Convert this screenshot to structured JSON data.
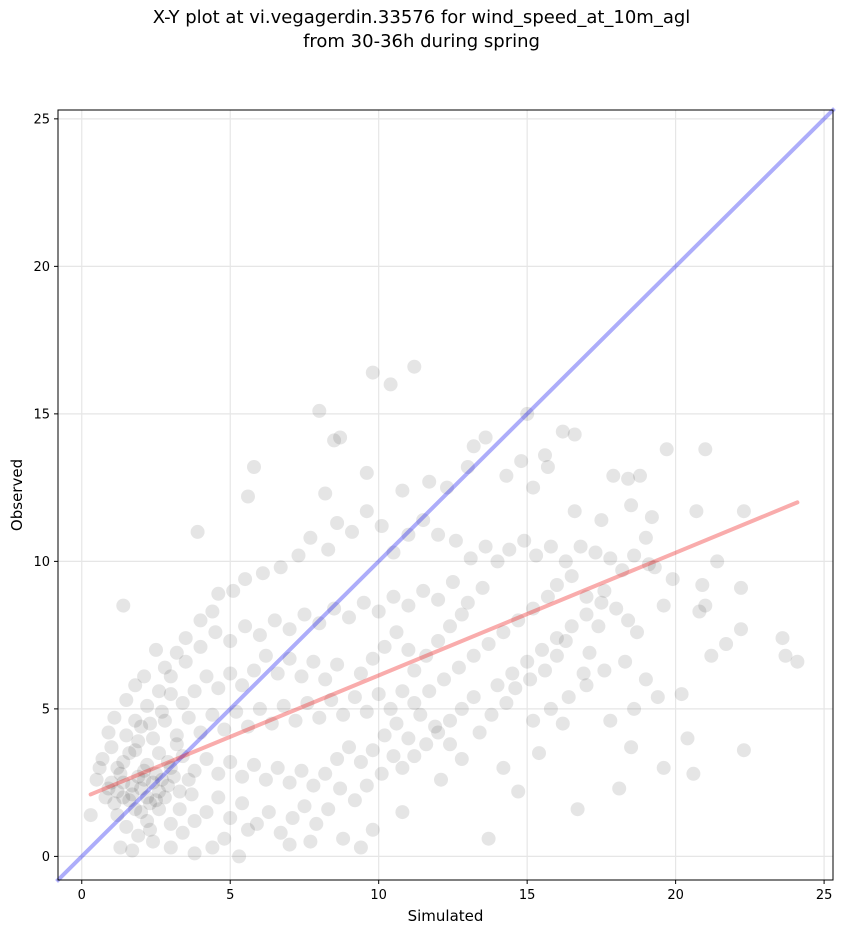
{
  "chart_data": {
    "type": "scatter",
    "title": [
      "X-Y plot at vi.vegagerdin.33576 for wind_speed_at_10m_agl",
      "from 30-36h during spring"
    ],
    "xlabel": "Simulated",
    "ylabel": "Observed",
    "xlim": [
      -0.8,
      25.3
    ],
    "ylim": [
      -0.8,
      25.3
    ],
    "xticks": [
      0,
      5,
      10,
      15,
      20,
      25
    ],
    "yticks": [
      0,
      5,
      10,
      15,
      20,
      25
    ],
    "grid": true,
    "colors": {
      "points": "#000000",
      "identity_line": "#0000ee",
      "regression_line": "#ee1111"
    },
    "reference_lines": {
      "identity": {
        "x": [
          -0.8,
          25.3
        ],
        "y": [
          -0.8,
          25.3
        ]
      },
      "regression": {
        "x": [
          0.3,
          24.1
        ],
        "y": [
          2.1,
          12.0
        ]
      }
    },
    "points": [
      [
        1.4,
        8.5
      ],
      [
        3.9,
        11.0
      ],
      [
        5.8,
        13.2
      ],
      [
        5.6,
        12.2
      ],
      [
        8.0,
        15.1
      ],
      [
        8.2,
        12.3
      ],
      [
        8.5,
        14.1
      ],
      [
        8.7,
        14.2
      ],
      [
        9.8,
        16.4
      ],
      [
        10.4,
        16.0
      ],
      [
        11.2,
        16.6
      ],
      [
        9.6,
        13.0
      ],
      [
        10.8,
        12.4
      ],
      [
        11.7,
        12.7
      ],
      [
        12.3,
        12.5
      ],
      [
        13.0,
        13.2
      ],
      [
        13.2,
        13.9
      ],
      [
        13.6,
        14.2
      ],
      [
        14.3,
        12.9
      ],
      [
        15.0,
        15.0
      ],
      [
        16.2,
        14.4
      ],
      [
        16.6,
        14.3
      ],
      [
        15.6,
        13.6
      ],
      [
        15.7,
        13.2
      ],
      [
        14.8,
        13.4
      ],
      [
        15.2,
        12.5
      ],
      [
        16.6,
        11.7
      ],
      [
        17.5,
        11.4
      ],
      [
        17.9,
        12.9
      ],
      [
        18.4,
        12.8
      ],
      [
        18.8,
        12.9
      ],
      [
        19.7,
        13.8
      ],
      [
        21.0,
        13.8
      ],
      [
        20.7,
        11.7
      ],
      [
        22.3,
        11.7
      ],
      [
        18.5,
        11.9
      ],
      [
        19.2,
        11.5
      ],
      [
        19.0,
        10.8
      ],
      [
        19.1,
        9.9
      ],
      [
        21.4,
        10.0
      ],
      [
        20.9,
        9.2
      ],
      [
        21.0,
        8.5
      ],
      [
        20.8,
        8.3
      ],
      [
        19.6,
        8.5
      ],
      [
        19.9,
        9.4
      ],
      [
        22.2,
        9.1
      ],
      [
        21.2,
        6.8
      ],
      [
        21.7,
        7.2
      ],
      [
        22.2,
        7.7
      ],
      [
        23.6,
        7.4
      ],
      [
        23.7,
        6.8
      ],
      [
        24.1,
        6.6
      ],
      [
        20.2,
        5.5
      ],
      [
        20.4,
        4.0
      ],
      [
        20.6,
        2.8
      ],
      [
        19.6,
        3.0
      ],
      [
        22.3,
        3.6
      ],
      [
        18.5,
        3.7
      ],
      [
        18.1,
        2.3
      ],
      [
        16.7,
        1.6
      ],
      [
        14.7,
        2.2
      ],
      [
        14.2,
        3.0
      ],
      [
        15.4,
        3.5
      ],
      [
        13.7,
        0.6
      ],
      [
        12.1,
        2.6
      ],
      [
        10.8,
        1.5
      ],
      [
        9.8,
        0.9
      ],
      [
        9.4,
        0.3
      ],
      [
        8.8,
        0.6
      ],
      [
        7.7,
        0.5
      ],
      [
        7.0,
        0.4
      ],
      [
        5.6,
        0.9
      ],
      [
        5.3,
        0.0
      ],
      [
        4.8,
        0.6
      ],
      [
        4.4,
        0.3
      ],
      [
        3.8,
        0.1
      ],
      [
        3.0,
        0.3
      ],
      [
        2.4,
        0.5
      ],
      [
        1.7,
        0.2
      ],
      [
        1.3,
        0.3
      ],
      [
        1.2,
        1.4
      ],
      [
        0.3,
        1.4
      ],
      [
        0.5,
        2.6
      ],
      [
        0.6,
        3.0
      ],
      [
        0.9,
        4.2
      ],
      [
        1.1,
        4.7
      ],
      [
        1.5,
        5.3
      ],
      [
        1.8,
        5.8
      ],
      [
        2.1,
        6.1
      ],
      [
        2.5,
        7.0
      ],
      [
        2.8,
        6.4
      ],
      [
        3.2,
        6.9
      ],
      [
        3.5,
        7.4
      ],
      [
        4.0,
        8.0
      ],
      [
        4.4,
        8.3
      ],
      [
        4.6,
        8.9
      ],
      [
        5.1,
        9.0
      ],
      [
        5.5,
        9.4
      ],
      [
        6.1,
        9.6
      ],
      [
        6.7,
        9.8
      ],
      [
        7.3,
        10.2
      ],
      [
        7.7,
        10.8
      ],
      [
        8.3,
        10.4
      ],
      [
        8.6,
        11.3
      ],
      [
        9.1,
        11.0
      ],
      [
        9.6,
        11.7
      ],
      [
        10.1,
        11.2
      ],
      [
        10.5,
        10.3
      ],
      [
        11.0,
        10.9
      ],
      [
        11.5,
        11.4
      ],
      [
        12.0,
        10.9
      ],
      [
        12.6,
        10.7
      ],
      [
        13.1,
        10.1
      ],
      [
        13.6,
        10.5
      ],
      [
        14.0,
        10.0
      ],
      [
        14.4,
        10.4
      ],
      [
        14.9,
        10.7
      ],
      [
        15.3,
        10.2
      ],
      [
        15.8,
        10.5
      ],
      [
        16.3,
        10.0
      ],
      [
        16.8,
        10.5
      ],
      [
        17.3,
        10.3
      ],
      [
        17.8,
        10.1
      ],
      [
        18.2,
        9.7
      ],
      [
        18.6,
        10.2
      ],
      [
        19.3,
        9.8
      ],
      [
        16.0,
        9.2
      ],
      [
        16.5,
        9.5
      ],
      [
        17.0,
        8.8
      ],
      [
        17.6,
        9.0
      ],
      [
        18.0,
        8.4
      ],
      [
        18.4,
        8.0
      ],
      [
        18.7,
        7.6
      ],
      [
        17.4,
        7.8
      ],
      [
        17.1,
        6.9
      ],
      [
        16.3,
        7.3
      ],
      [
        16.0,
        6.8
      ],
      [
        15.6,
        6.3
      ],
      [
        15.1,
        6.0
      ],
      [
        14.6,
        5.7
      ],
      [
        14.3,
        5.2
      ],
      [
        13.8,
        4.8
      ],
      [
        13.4,
        4.2
      ],
      [
        12.8,
        3.3
      ],
      [
        12.4,
        3.8
      ],
      [
        11.9,
        4.4
      ],
      [
        11.4,
        4.8
      ],
      [
        11.0,
        4.0
      ],
      [
        10.5,
        3.4
      ],
      [
        10.1,
        2.8
      ],
      [
        9.6,
        2.4
      ],
      [
        9.2,
        1.9
      ],
      [
        8.7,
        2.3
      ],
      [
        8.3,
        1.6
      ],
      [
        7.9,
        1.1
      ],
      [
        7.5,
        1.7
      ],
      [
        7.1,
        1.3
      ],
      [
        6.7,
        0.8
      ],
      [
        6.3,
        1.5
      ],
      [
        5.9,
        1.1
      ],
      [
        5.4,
        1.8
      ],
      [
        5.0,
        1.3
      ],
      [
        4.6,
        2.0
      ],
      [
        4.2,
        1.5
      ],
      [
        3.7,
        2.1
      ],
      [
        3.3,
        1.6
      ],
      [
        2.9,
        2.4
      ],
      [
        2.5,
        1.9
      ],
      [
        2.1,
        2.6
      ],
      [
        1.7,
        2.1
      ],
      [
        1.3,
        2.8
      ],
      [
        0.9,
        2.3
      ],
      [
        0.7,
        3.3
      ],
      [
        1.0,
        3.7
      ],
      [
        1.4,
        3.2
      ],
      [
        1.8,
        3.6
      ],
      [
        2.2,
        3.1
      ],
      [
        2.6,
        3.5
      ],
      [
        3.0,
        3.0
      ],
      [
        3.4,
        3.4
      ],
      [
        3.8,
        2.9
      ],
      [
        4.2,
        3.3
      ],
      [
        4.6,
        2.8
      ],
      [
        5.0,
        3.2
      ],
      [
        5.4,
        2.7
      ],
      [
        5.8,
        3.1
      ],
      [
        6.2,
        2.6
      ],
      [
        6.6,
        3.0
      ],
      [
        7.0,
        2.5
      ],
      [
        7.4,
        2.9
      ],
      [
        7.8,
        2.4
      ],
      [
        8.2,
        2.8
      ],
      [
        8.6,
        3.3
      ],
      [
        9.0,
        3.7
      ],
      [
        9.4,
        3.2
      ],
      [
        9.8,
        3.6
      ],
      [
        10.2,
        4.1
      ],
      [
        10.6,
        4.5
      ],
      [
        11.2,
        5.2
      ],
      [
        11.7,
        5.6
      ],
      [
        12.2,
        6.0
      ],
      [
        12.7,
        6.4
      ],
      [
        13.2,
        6.8
      ],
      [
        13.7,
        7.2
      ],
      [
        14.2,
        7.6
      ],
      [
        14.7,
        8.0
      ],
      [
        15.2,
        8.4
      ],
      [
        15.7,
        8.8
      ],
      [
        13.0,
        8.6
      ],
      [
        13.5,
        9.1
      ],
      [
        12.5,
        9.3
      ],
      [
        12.0,
        8.7
      ],
      [
        11.5,
        9.0
      ],
      [
        11.0,
        8.5
      ],
      [
        10.5,
        8.8
      ],
      [
        10.0,
        8.3
      ],
      [
        9.5,
        8.6
      ],
      [
        9.0,
        8.1
      ],
      [
        8.5,
        8.4
      ],
      [
        8.0,
        7.9
      ],
      [
        7.5,
        8.2
      ],
      [
        7.0,
        7.7
      ],
      [
        6.5,
        8.0
      ],
      [
        6.0,
        7.5
      ],
      [
        5.5,
        7.8
      ],
      [
        5.0,
        7.3
      ],
      [
        4.5,
        7.6
      ],
      [
        4.0,
        7.1
      ],
      [
        3.5,
        6.6
      ],
      [
        3.0,
        6.1
      ],
      [
        2.6,
        5.6
      ],
      [
        2.2,
        5.1
      ],
      [
        1.8,
        4.6
      ],
      [
        1.5,
        4.1
      ],
      [
        2.0,
        4.4
      ],
      [
        2.4,
        4.0
      ],
      [
        2.8,
        4.6
      ],
      [
        3.2,
        4.1
      ],
      [
        3.6,
        4.7
      ],
      [
        4.0,
        4.2
      ],
      [
        4.4,
        4.8
      ],
      [
        4.8,
        4.3
      ],
      [
        5.2,
        4.9
      ],
      [
        5.6,
        4.4
      ],
      [
        6.0,
        5.0
      ],
      [
        6.4,
        4.5
      ],
      [
        6.8,
        5.1
      ],
      [
        7.2,
        4.6
      ],
      [
        7.6,
        5.2
      ],
      [
        8.0,
        4.7
      ],
      [
        8.4,
        5.3
      ],
      [
        8.8,
        4.8
      ],
      [
        9.2,
        5.4
      ],
      [
        9.6,
        4.9
      ],
      [
        10.0,
        5.5
      ],
      [
        10.4,
        5.0
      ],
      [
        10.8,
        5.6
      ],
      [
        11.2,
        6.3
      ],
      [
        11.6,
        6.8
      ],
      [
        12.0,
        7.3
      ],
      [
        12.4,
        7.8
      ],
      [
        12.8,
        8.2
      ],
      [
        9.4,
        6.2
      ],
      [
        9.8,
        6.7
      ],
      [
        10.2,
        7.1
      ],
      [
        10.6,
        7.6
      ],
      [
        11.0,
        7.0
      ],
      [
        8.6,
        6.5
      ],
      [
        8.2,
        6.0
      ],
      [
        7.8,
        6.6
      ],
      [
        7.4,
        6.1
      ],
      [
        7.0,
        6.7
      ],
      [
        6.6,
        6.2
      ],
      [
        6.2,
        6.8
      ],
      [
        5.8,
        6.3
      ],
      [
        5.4,
        5.8
      ],
      [
        5.0,
        6.2
      ],
      [
        4.6,
        5.7
      ],
      [
        4.2,
        6.1
      ],
      [
        3.8,
        5.6
      ],
      [
        3.4,
        5.2
      ],
      [
        3.0,
        5.5
      ],
      [
        2.7,
        4.9
      ],
      [
        2.3,
        4.5
      ],
      [
        1.9,
        3.9
      ],
      [
        1.6,
        3.5
      ],
      [
        1.2,
        3.0
      ],
      [
        1.0,
        2.5
      ],
      [
        1.4,
        2.0
      ],
      [
        1.8,
        1.6
      ],
      [
        2.2,
        1.2
      ],
      [
        2.6,
        1.6
      ],
      [
        3.0,
        1.1
      ],
      [
        3.4,
        0.8
      ],
      [
        3.8,
        1.2
      ],
      [
        1.5,
        1.0
      ],
      [
        1.9,
        0.7
      ],
      [
        2.3,
        0.9
      ],
      [
        1.1,
        1.8
      ],
      [
        0.8,
        2.0
      ],
      [
        2.0,
        2.3
      ],
      [
        2.2,
        2.0
      ],
      [
        2.4,
        2.5
      ],
      [
        2.6,
        2.2
      ],
      [
        1.9,
        2.7
      ],
      [
        2.1,
        2.9
      ],
      [
        2.5,
        2.8
      ],
      [
        2.7,
        2.6
      ],
      [
        1.7,
        2.4
      ],
      [
        2.3,
        1.8
      ],
      [
        2.0,
        1.5
      ],
      [
        2.8,
        2.0
      ],
      [
        3.1,
        2.7
      ],
      [
        3.3,
        2.2
      ],
      [
        3.6,
        2.6
      ],
      [
        1.6,
        1.9
      ],
      [
        1.4,
        2.5
      ],
      [
        1.2,
        2.2
      ],
      [
        2.9,
        3.2
      ],
      [
        3.2,
        3.8
      ],
      [
        14.0,
        5.8
      ],
      [
        14.5,
        6.2
      ],
      [
        15.0,
        6.6
      ],
      [
        15.5,
        7.0
      ],
      [
        16.0,
        7.4
      ],
      [
        16.5,
        7.8
      ],
      [
        17.0,
        8.2
      ],
      [
        17.5,
        8.6
      ],
      [
        13.2,
        5.4
      ],
      [
        12.8,
        5.0
      ],
      [
        12.4,
        4.6
      ],
      [
        12.0,
        4.2
      ],
      [
        11.6,
        3.8
      ],
      [
        11.2,
        3.4
      ],
      [
        10.8,
        3.0
      ],
      [
        15.2,
        4.6
      ],
      [
        15.8,
        5.0
      ],
      [
        16.4,
        5.4
      ],
      [
        17.0,
        5.8
      ],
      [
        17.6,
        6.3
      ],
      [
        16.2,
        4.5
      ],
      [
        16.9,
        6.2
      ],
      [
        18.3,
        6.6
      ],
      [
        19.0,
        6.0
      ],
      [
        19.4,
        5.4
      ],
      [
        18.6,
        5.0
      ],
      [
        17.8,
        4.6
      ]
    ]
  }
}
